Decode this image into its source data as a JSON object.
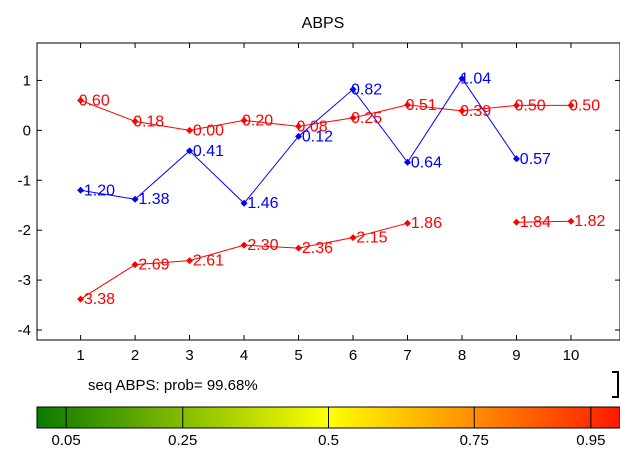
{
  "chart_data": {
    "type": "line",
    "title": "ABPS",
    "x": [
      1,
      2,
      3,
      4,
      5,
      6,
      7,
      8,
      9,
      10
    ],
    "xlim": [
      0.2,
      10.9
    ],
    "ylim": [
      -4.2,
      1.75
    ],
    "xticks": [
      1,
      2,
      3,
      4,
      5,
      6,
      7,
      8,
      9,
      10
    ],
    "yticks": [
      1,
      0,
      -1,
      -2,
      -3,
      -4
    ],
    "grid": false,
    "series": [
      {
        "color": "#ff0000",
        "marker": "diamond",
        "values": [
          0.6,
          0.18,
          -0.0,
          0.2,
          0.08,
          0.25,
          0.51,
          0.39,
          0.5,
          0.5
        ],
        "labels": [
          "0.60",
          "0.18",
          "-0.00",
          "0.20",
          "0.08",
          "0.25",
          "0.51",
          "0.39",
          "0.50",
          "0.50"
        ]
      },
      {
        "color": "#0000ff",
        "marker": "diamond",
        "values": [
          -1.2,
          -1.38,
          -0.41,
          -1.46,
          -0.12,
          0.82,
          -0.64,
          1.04,
          -0.57,
          null
        ],
        "labels": [
          "-1.20",
          "-1.38",
          "-0.41",
          "-1.46",
          "-0.12",
          "0.82",
          "-0.64",
          "1.04",
          "-0.57",
          ""
        ]
      },
      {
        "color": "#ff0000",
        "marker": "diamond",
        "values": [
          -3.38,
          -2.69,
          -2.61,
          -2.3,
          -2.36,
          -2.15,
          -1.86,
          null,
          -1.84,
          -1.82
        ],
        "labels": [
          "-3.38",
          "-2.69",
          "-2.61",
          "-2.30",
          "-2.36",
          "-2.15",
          "-1.86",
          "",
          "-1.84",
          "-1.82"
        ]
      }
    ]
  },
  "caption": "seq ABPS: prob= 99.68%",
  "colorbar": {
    "colors": [
      "#008000",
      "#ffff00",
      "#ff0000"
    ],
    "tick_labels": [
      "0.05",
      "0.25",
      "0.5",
      "0.75",
      "0.95"
    ],
    "tick_values": [
      0.05,
      0.25,
      0.5,
      0.75,
      0.95
    ],
    "marker_values": [
      0.05,
      0.25,
      0.5,
      0.75,
      0.95
    ]
  }
}
